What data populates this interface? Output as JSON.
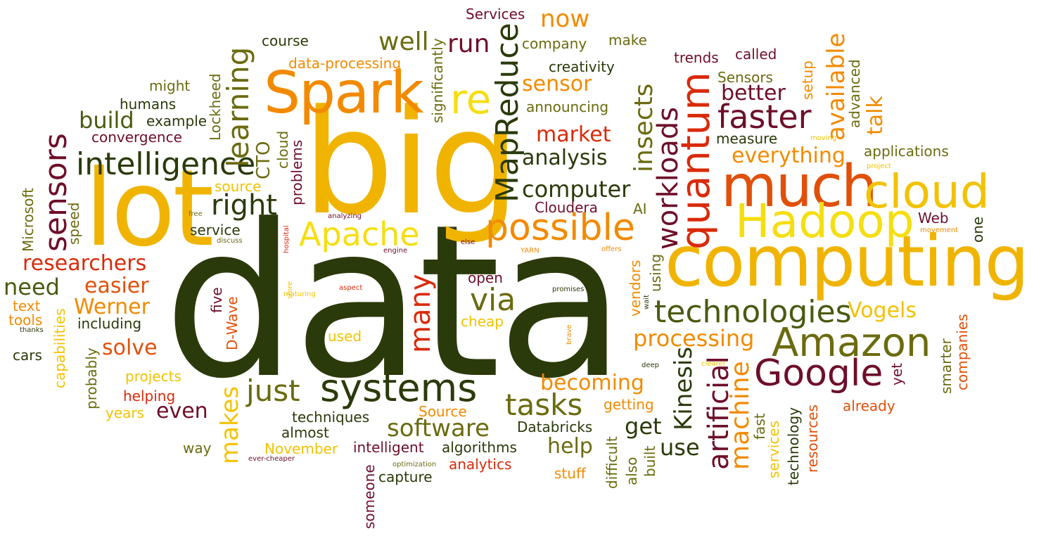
{
  "palette": {
    "dark_green": "#2b3a0a",
    "olive": "#6b6b10",
    "yellow": "#f2c200",
    "orange": "#f28a00",
    "red": "#d92a0a",
    "maroon": "#6e0f2a",
    "gold": "#f0b400"
  },
  "words": [
    "data",
    "big",
    "lot",
    "computing",
    "Spark",
    "much",
    "cloud",
    "Hadoop",
    "quantum",
    "Amazon",
    "systems",
    "Google",
    "sensors",
    "intelligence",
    "MapReduce",
    "possible",
    "technologies",
    "re",
    "faster",
    "Apache",
    "learning",
    "workloads",
    "just",
    "tasks",
    "artificial",
    "right",
    "researchers",
    "processing",
    "machine",
    "software",
    "via",
    "many",
    "insects",
    "Kinesis",
    "available",
    "computer",
    "market",
    "analysis",
    "everything",
    "Vogels",
    "Werner",
    "easier",
    "solve",
    "becoming",
    "sensor",
    "better",
    "well",
    "run",
    "now",
    "makes",
    "need",
    "build",
    "use",
    "get",
    "talk",
    "help",
    "even",
    "Services",
    "course",
    "company",
    "make",
    "data-processing",
    "creativity",
    "trends",
    "called",
    "Sensors",
    "setup",
    "advanced",
    "might",
    "humans",
    "example",
    "convergence",
    "Lockheed",
    "CTO",
    "cloud",
    "problems",
    "significantly",
    "announcing",
    "measure",
    "applications",
    "Cloudera",
    "AI",
    "Web",
    "one",
    "source",
    "speed",
    "Microsoft",
    "service",
    "text",
    "tools",
    "including",
    "cars",
    "capabilities",
    "projects",
    "probably",
    "helping",
    "years",
    "techniques",
    "almost",
    "way",
    "November",
    "intelligent",
    "algorithms",
    "analytics",
    "capture",
    "stuff",
    "someone",
    "open",
    "used",
    "five",
    "D-Wave",
    "cheap",
    "vendors",
    "using",
    "Source",
    "Databricks",
    "difficult",
    "also",
    "built",
    "getting",
    "fast",
    "services",
    "technology",
    "resources",
    "already",
    "smarter",
    "companies",
    "yet",
    "free",
    "discuss",
    "hospital",
    "analyzing",
    "engine",
    "else",
    "YARN",
    "offers",
    "movement",
    "project",
    "moving",
    "store",
    "maturing",
    "aspect",
    "promises",
    "wait",
    "thanks",
    "brave",
    "deep",
    "clearer",
    "ever-cheaper",
    "optimization"
  ]
}
